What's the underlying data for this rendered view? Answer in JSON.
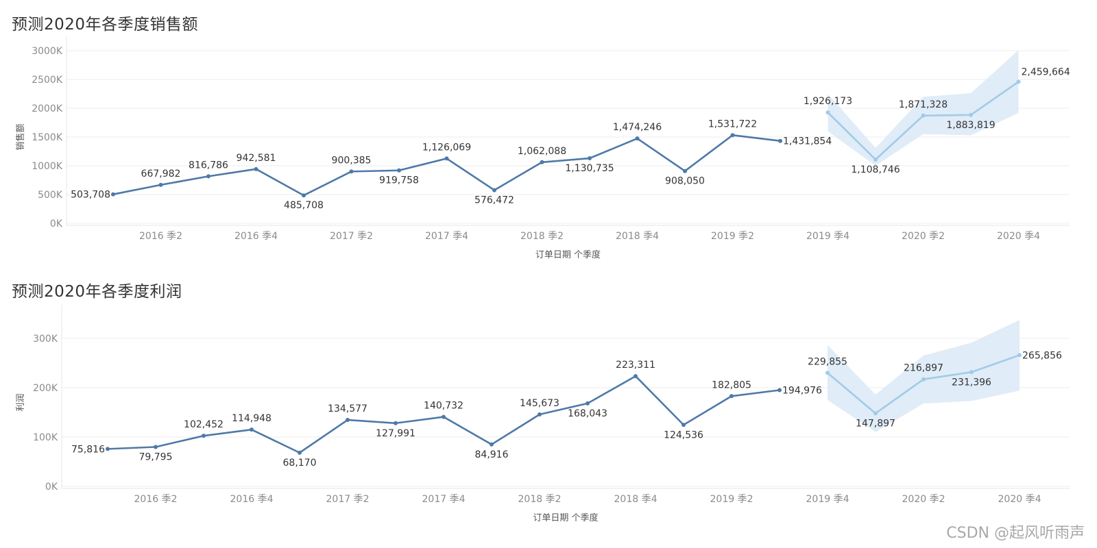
{
  "watermark": "CSDN @起风听雨声",
  "chart_data": [
    {
      "type": "line",
      "title": "预测2020年各季度销售额",
      "xlabel": "订单日期 个季度",
      "ylabel": "销售额",
      "ylim": [
        0,
        3000000
      ],
      "y_ticks": [
        "3000K",
        "2500K",
        "2000K",
        "1500K",
        "1000K",
        "500K",
        "0K"
      ],
      "y_tick_values": [
        3000000,
        2500000,
        2000000,
        1500000,
        1000000,
        500000,
        0
      ],
      "x_tick_labels": [
        "2016 季2",
        "2016 季4",
        "2017 季2",
        "2017 季4",
        "2018 季2",
        "2018 季4",
        "2019 季2",
        "2019 季4",
        "2020 季2",
        "2020 季4"
      ],
      "x_tick_indices": [
        1,
        3,
        5,
        7,
        9,
        11,
        13,
        15,
        17,
        19
      ],
      "grid": true,
      "series": [
        {
          "kind": "actual",
          "color": "#4e79a7",
          "x": [
            "2016 季1",
            "2016 季2",
            "2016 季3",
            "2016 季4",
            "2017 季1",
            "2017 季2",
            "2017 季3",
            "2017 季4",
            "2018 季1",
            "2018 季2",
            "2018 季3",
            "2018 季4",
            "2019 季1",
            "2019 季2",
            "2019 季3"
          ],
          "values": [
            503708,
            667982,
            816786,
            942581,
            485708,
            900385,
            919758,
            1126069,
            576472,
            1062088,
            1130735,
            1474246,
            908050,
            1531722,
            1431854
          ],
          "labels": [
            "503,708",
            "667,982",
            "816,786",
            "942,581",
            "485,708",
            "900,385",
            "919,758",
            "1,126,069",
            "576,472",
            "1,062,088",
            "1,130,735",
            "1,474,246",
            "908,050",
            "1,531,722",
            "1,431,854"
          ]
        },
        {
          "kind": "forecast",
          "color": "#a0cbe8",
          "band_color": "#dbe9f6",
          "x": [
            "2019 季4",
            "2020 季1",
            "2020 季2",
            "2020 季3",
            "2020 季4"
          ],
          "values": [
            1926173,
            1108746,
            1871328,
            1883819,
            2459664
          ],
          "lower": [
            1600000,
            1000000,
            1550000,
            1530000,
            1920000
          ],
          "upper": [
            2250000,
            1310000,
            2200000,
            2260000,
            3010000
          ],
          "labels": [
            "1,926,173",
            "1,108,746",
            "1,871,328",
            "1,883,819",
            "2,459,664"
          ]
        }
      ]
    },
    {
      "type": "line",
      "title": "预测2020年各季度利润",
      "xlabel": "订单日期 个季度",
      "ylabel": "利润",
      "ylim": [
        0,
        340000
      ],
      "y_ticks": [
        "300K",
        "200K",
        "100K",
        "0K"
      ],
      "y_tick_values": [
        300000,
        200000,
        100000,
        0
      ],
      "x_tick_labels": [
        "2016 季2",
        "2016 季4",
        "2017 季2",
        "2017 季4",
        "2018 季2",
        "2018 季4",
        "2019 季2",
        "2019 季4",
        "2020 季2",
        "2020 季4"
      ],
      "x_tick_indices": [
        1,
        3,
        5,
        7,
        9,
        11,
        13,
        15,
        17,
        19
      ],
      "grid": true,
      "series": [
        {
          "kind": "actual",
          "color": "#4e79a7",
          "x": [
            "2016 季1",
            "2016 季2",
            "2016 季3",
            "2016 季4",
            "2017 季1",
            "2017 季2",
            "2017 季3",
            "2017 季4",
            "2018 季1",
            "2018 季2",
            "2018 季3",
            "2018 季4",
            "2019 季1",
            "2019 季2",
            "2019 季3"
          ],
          "values": [
            75816,
            79795,
            102452,
            114948,
            68170,
            134577,
            127991,
            140732,
            84916,
            145673,
            168043,
            223311,
            124536,
            182805,
            194976
          ],
          "labels": [
            "75,816",
            "79,795",
            "102,452",
            "114,948",
            "68,170",
            "134,577",
            "127,991",
            "140,732",
            "84,916",
            "145,673",
            "168,043",
            "223,311",
            "124,536",
            "182,805",
            "194,976"
          ]
        },
        {
          "kind": "forecast",
          "color": "#a0cbe8",
          "band_color": "#dbe9f6",
          "x": [
            "2019 季4",
            "2020 季1",
            "2020 季2",
            "2020 季3",
            "2020 季4"
          ],
          "values": [
            229855,
            147897,
            216897,
            231396,
            265856
          ],
          "lower": [
            175000,
            110000,
            168000,
            173000,
            194000
          ],
          "upper": [
            286000,
            186000,
            265000,
            291000,
            337000
          ],
          "labels": [
            "229,855",
            "147,897",
            "216,897",
            "231,396",
            "265,856"
          ]
        }
      ]
    }
  ]
}
